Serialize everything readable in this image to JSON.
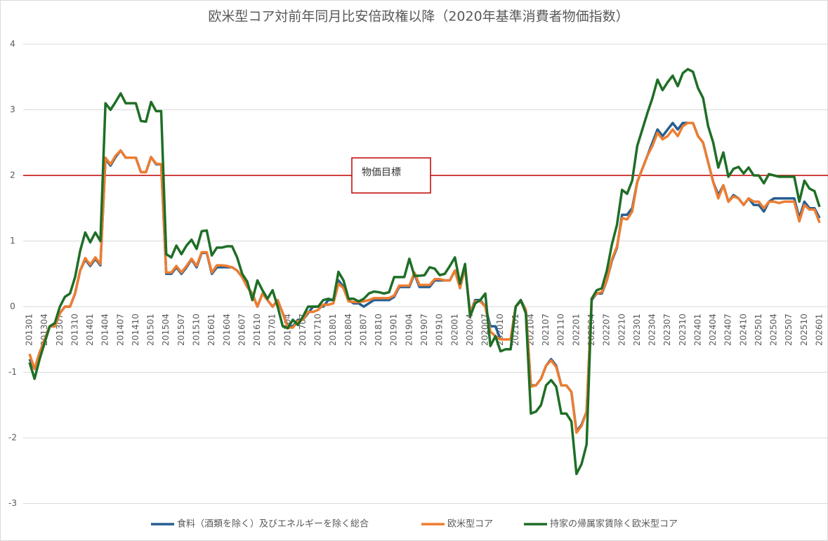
{
  "chart_data": {
    "type": "line",
    "title": "欧米型コア対前年同月比安倍政権以降（2020年基準消費者物価指数）",
    "categories": [
      "201301",
      null,
      null,
      "201304",
      null,
      null,
      "201307",
      null,
      null,
      "201310",
      null,
      null,
      "201401",
      null,
      null,
      "201404",
      null,
      null,
      "201407",
      null,
      null,
      "201410",
      null,
      null,
      "201501",
      null,
      null,
      "201504",
      null,
      null,
      "201507",
      null,
      null,
      "201510",
      null,
      null,
      "201601",
      null,
      null,
      "201604",
      null,
      null,
      "201607",
      null,
      null,
      "201610",
      null,
      null,
      "201701",
      null,
      null,
      "201704",
      null,
      null,
      "201707",
      null,
      null,
      "201710",
      null,
      null,
      "201801",
      null,
      null,
      "201804",
      null,
      null,
      "201807",
      null,
      null,
      "201810",
      null,
      null,
      "201901",
      null,
      null,
      "201904",
      null,
      null,
      "201907",
      null,
      null,
      "201910",
      null,
      null,
      "202001",
      null,
      null,
      "202004",
      null,
      null,
      "202007",
      null,
      null,
      "202010",
      null,
      null,
      "202101",
      null,
      null,
      "202104",
      null,
      null,
      "202107",
      null,
      null,
      "202110",
      null,
      null,
      "202201",
      null,
      null,
      "202204",
      null,
      null,
      "202207",
      null,
      null,
      "202210",
      null,
      null,
      "202301",
      null,
      null,
      "202304",
      null,
      null,
      "202307",
      null,
      null,
      "202310",
      null,
      null,
      "202401",
      null,
      null,
      "202404",
      null,
      null,
      "202407",
      null,
      null,
      "202410",
      null,
      null,
      "202501",
      null,
      null,
      "202504",
      null,
      null,
      "202507",
      null,
      null,
      "202510",
      null,
      null,
      "202601"
    ],
    "series": [
      {
        "name": "食料（酒類を除く）及びエネルギーを除く総合",
        "color": "#255e91",
        "values": [
          -0.8,
          -0.95,
          -0.7,
          -0.5,
          -0.3,
          -0.3,
          -0.1,
          0.0,
          0.0,
          0.2,
          0.55,
          0.72,
          0.62,
          0.73,
          0.63,
          2.25,
          2.15,
          2.28,
          2.38,
          2.27,
          2.27,
          2.27,
          2.05,
          2.05,
          2.28,
          2.17,
          2.17,
          0.5,
          0.5,
          0.6,
          0.5,
          0.6,
          0.72,
          0.6,
          0.82,
          0.82,
          0.5,
          0.6,
          0.6,
          0.6,
          0.6,
          0.55,
          0.45,
          0.3,
          0.2,
          0.0,
          0.2,
          0.1,
          0.0,
          0.1,
          -0.1,
          -0.3,
          -0.3,
          -0.2,
          -0.2,
          -0.1,
          0.0,
          0.0,
          0.0,
          0.1,
          0.1,
          0.4,
          0.3,
          0.1,
          0.05,
          0.05,
          0.0,
          0.05,
          0.1,
          0.1,
          0.1,
          0.1,
          0.15,
          0.3,
          0.3,
          0.3,
          0.5,
          0.3,
          0.3,
          0.3,
          0.4,
          0.4,
          0.4,
          0.4,
          0.55,
          0.3,
          0.6,
          -0.1,
          0.1,
          0.1,
          0.0,
          -0.3,
          -0.3,
          -0.5,
          -0.5,
          -0.5,
          0.0,
          0.1,
          -0.05,
          -1.2,
          -1.2,
          -1.1,
          -0.9,
          -0.8,
          -0.9,
          -1.2,
          -1.2,
          -1.3,
          -1.9,
          -1.8,
          -1.6,
          0.1,
          0.2,
          0.2,
          0.4,
          0.7,
          0.9,
          1.4,
          1.4,
          1.5,
          1.9,
          2.1,
          2.3,
          2.5,
          2.7,
          2.6,
          2.7,
          2.8,
          2.7,
          2.8,
          2.8,
          2.8,
          2.6,
          2.5,
          2.2,
          1.9,
          1.7,
          1.85,
          1.6,
          1.7,
          1.65,
          1.55,
          1.65,
          1.55,
          1.55,
          1.45,
          1.6,
          1.65,
          1.65,
          1.65,
          1.65,
          1.65,
          1.35,
          1.6,
          1.5,
          1.5,
          1.35
        ]
      },
      {
        "name": "欧米型コア",
        "color": "#ed7d31",
        "values": [
          -0.72,
          -0.95,
          -0.7,
          -0.5,
          -0.3,
          -0.3,
          -0.1,
          0.0,
          0.0,
          0.2,
          0.55,
          0.74,
          0.64,
          0.75,
          0.65,
          2.27,
          2.17,
          2.3,
          2.38,
          2.27,
          2.27,
          2.27,
          2.05,
          2.05,
          2.28,
          2.18,
          2.17,
          0.52,
          0.52,
          0.62,
          0.52,
          0.62,
          0.73,
          0.62,
          0.83,
          0.83,
          0.52,
          0.63,
          0.63,
          0.62,
          0.6,
          0.55,
          0.45,
          0.3,
          0.2,
          0.0,
          0.2,
          0.1,
          0.0,
          0.1,
          -0.1,
          -0.32,
          -0.32,
          -0.22,
          -0.2,
          -0.08,
          -0.08,
          -0.05,
          0.03,
          0.03,
          0.05,
          0.35,
          0.28,
          0.08,
          0.07,
          0.07,
          0.08,
          0.1,
          0.13,
          0.13,
          0.13,
          0.13,
          0.17,
          0.32,
          0.32,
          0.32,
          0.52,
          0.33,
          0.33,
          0.33,
          0.42,
          0.42,
          0.4,
          0.4,
          0.55,
          0.28,
          0.6,
          -0.1,
          0.08,
          0.08,
          0.0,
          -0.38,
          -0.45,
          -0.5,
          -0.5,
          -0.5,
          0.0,
          0.08,
          -0.05,
          -1.22,
          -1.2,
          -1.1,
          -0.9,
          -0.82,
          -0.92,
          -1.2,
          -1.2,
          -1.3,
          -1.92,
          -1.82,
          -1.6,
          0.12,
          0.2,
          0.22,
          0.4,
          0.72,
          0.92,
          1.35,
          1.33,
          1.45,
          1.9,
          2.1,
          2.3,
          2.45,
          2.65,
          2.55,
          2.6,
          2.7,
          2.6,
          2.75,
          2.8,
          2.8,
          2.6,
          2.5,
          2.2,
          1.9,
          1.65,
          1.85,
          1.6,
          1.68,
          1.65,
          1.55,
          1.65,
          1.6,
          1.6,
          1.5,
          1.6,
          1.6,
          1.58,
          1.6,
          1.6,
          1.6,
          1.3,
          1.55,
          1.48,
          1.48,
          1.28
        ]
      },
      {
        "name": "持家の帰属家賃除く欧米型コア",
        "color": "#1f6e26",
        "values": [
          -0.85,
          -1.1,
          -0.8,
          -0.55,
          -0.3,
          -0.25,
          0.0,
          0.15,
          0.2,
          0.45,
          0.85,
          1.13,
          0.98,
          1.13,
          1.0,
          3.1,
          3.0,
          3.12,
          3.25,
          3.1,
          3.1,
          3.1,
          2.83,
          2.82,
          3.12,
          2.98,
          2.98,
          0.8,
          0.75,
          0.93,
          0.8,
          0.93,
          1.02,
          0.88,
          1.15,
          1.16,
          0.78,
          0.9,
          0.9,
          0.92,
          0.92,
          0.75,
          0.5,
          0.38,
          0.1,
          0.4,
          0.25,
          0.12,
          0.25,
          0.0,
          -0.3,
          -0.33,
          -0.2,
          -0.28,
          -0.15,
          0.0,
          0.0,
          0.0,
          0.1,
          0.12,
          0.1,
          0.53,
          0.4,
          0.12,
          0.12,
          0.08,
          0.12,
          0.2,
          0.23,
          0.22,
          0.2,
          0.22,
          0.45,
          0.45,
          0.45,
          0.73,
          0.47,
          0.47,
          0.48,
          0.6,
          0.58,
          0.48,
          0.5,
          0.62,
          0.75,
          0.35,
          0.65,
          -0.15,
          0.05,
          0.1,
          0.2,
          -0.6,
          -0.45,
          -0.68,
          -0.65,
          -0.65,
          0.0,
          0.1,
          -0.1,
          -1.63,
          -1.6,
          -1.5,
          -1.2,
          -1.12,
          -1.22,
          -1.63,
          -1.63,
          -1.75,
          -2.55,
          -2.4,
          -2.1,
          0.12,
          0.25,
          0.28,
          0.55,
          0.95,
          1.25,
          1.78,
          1.72,
          1.92,
          2.45,
          2.7,
          2.95,
          3.18,
          3.46,
          3.3,
          3.42,
          3.52,
          3.36,
          3.56,
          3.62,
          3.58,
          3.33,
          3.18,
          2.75,
          2.5,
          2.12,
          2.35,
          1.98,
          2.1,
          2.13,
          2.03,
          2.12,
          2.0,
          2.0,
          1.88,
          2.02,
          2.0,
          1.98,
          1.98,
          1.98,
          1.98,
          1.6,
          1.92,
          1.8,
          1.76,
          1.52
        ]
      }
    ],
    "target": {
      "value": 2,
      "label": "物価目標",
      "color": "#c00000"
    },
    "ylim": [
      -3,
      4
    ],
    "yticks": [
      -3,
      -2,
      -1,
      0,
      1,
      2,
      3,
      4
    ],
    "grid": true,
    "legend": "bottom"
  }
}
